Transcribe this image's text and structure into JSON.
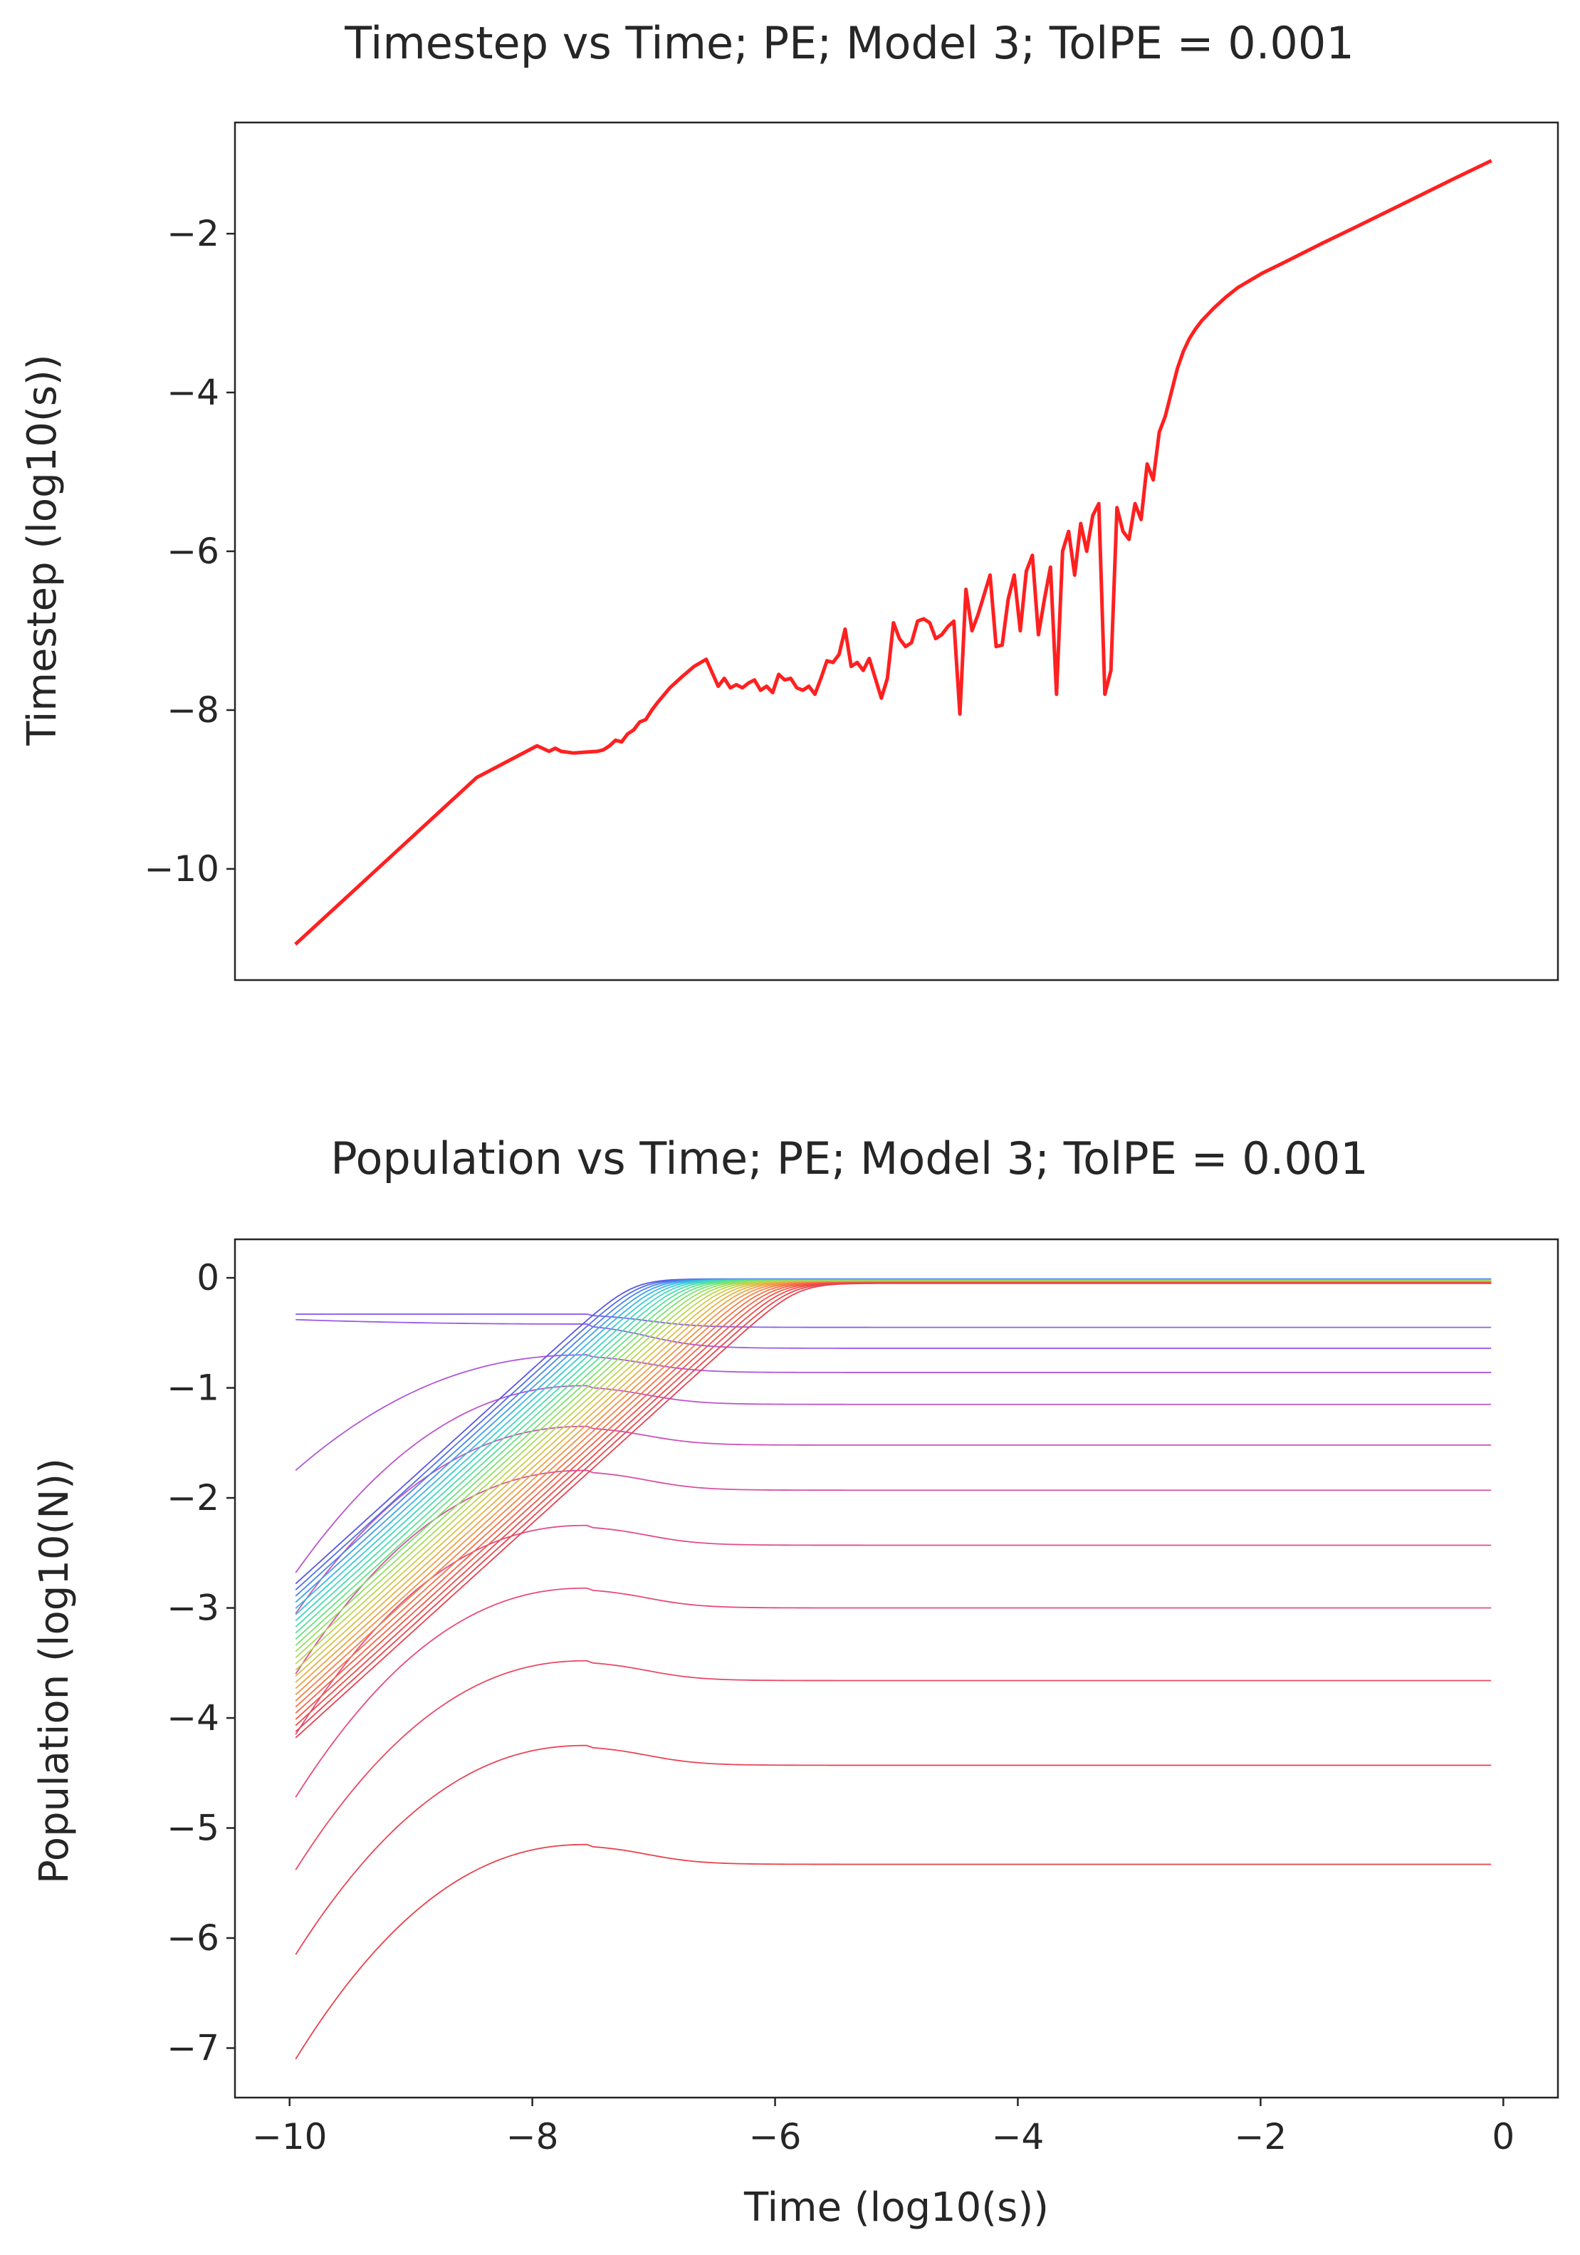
{
  "chart_data": [
    {
      "type": "line",
      "title": "Timestep vs Time; PE; Model 3; TolPE = 0.001",
      "xlabel": "",
      "ylabel": "Timestep (log10(s))",
      "xlim": [
        -10.5,
        0.45
      ],
      "ylim": [
        -11.4,
        -0.6
      ],
      "yticks": [
        -2,
        -4,
        -6,
        -8,
        -10
      ],
      "ytick_labels": [
        "−2",
        "−4",
        "−6",
        "−8",
        "−10"
      ],
      "show_xticks": false,
      "grid": false,
      "legend": "none",
      "series": [
        {
          "color": "#ff2020",
          "x": [
            -10,
            -9.5,
            -9,
            -8.5,
            -8.0,
            -7.9,
            -7.85,
            -7.8,
            -7.7,
            -7.6,
            -7.5,
            -7.45,
            -7.4,
            -7.35,
            -7.3,
            -7.25,
            -7.2,
            -7.15,
            -7.1,
            -7.05,
            -7.0,
            -6.9,
            -6.8,
            -6.7,
            -6.6,
            -6.5,
            -6.45,
            -6.4,
            -6.35,
            -6.3,
            -6.25,
            -6.2,
            -6.15,
            -6.1,
            -6.05,
            -6.0,
            -5.95,
            -5.9,
            -5.85,
            -5.8,
            -5.75,
            -5.7,
            -5.65,
            -5.6,
            -5.55,
            -5.5,
            -5.45,
            -5.4,
            -5.35,
            -5.3,
            -5.25,
            -5.2,
            -5.15,
            -5.1,
            -5.05,
            -5.0,
            -4.95,
            -4.9,
            -4.85,
            -4.8,
            -4.75,
            -4.7,
            -4.65,
            -4.6,
            -4.55,
            -4.5,
            -4.45,
            -4.4,
            -4.35,
            -4.3,
            -4.25,
            -4.2,
            -4.15,
            -4.1,
            -4.05,
            -4.0,
            -3.95,
            -3.9,
            -3.85,
            -3.8,
            -3.75,
            -3.7,
            -3.65,
            -3.6,
            -3.55,
            -3.5,
            -3.45,
            -3.4,
            -3.35,
            -3.3,
            -3.25,
            -3.2,
            -3.15,
            -3.1,
            -3.05,
            -3.0,
            -2.95,
            -2.9,
            -2.85,
            -2.8,
            -2.75,
            -2.7,
            -2.65,
            -2.6,
            -2.55,
            -2.5,
            -2.45,
            -2.4,
            -2.35,
            -2.3,
            -2.2,
            -2.0,
            -1.8,
            -1.5,
            -1.2,
            -0.8,
            -0.4,
            -0.1
          ],
          "y": [
            -10.95,
            -10.25,
            -9.55,
            -8.85,
            -8.45,
            -8.52,
            -8.48,
            -8.52,
            -8.54,
            -8.53,
            -8.52,
            -8.5,
            -8.45,
            -8.38,
            -8.4,
            -8.3,
            -8.25,
            -8.15,
            -8.12,
            -8.0,
            -7.9,
            -7.72,
            -7.58,
            -7.45,
            -7.36,
            -7.7,
            -7.6,
            -7.72,
            -7.68,
            -7.72,
            -7.66,
            -7.62,
            -7.75,
            -7.7,
            -7.78,
            -7.55,
            -7.62,
            -7.6,
            -7.72,
            -7.75,
            -7.7,
            -7.8,
            -7.6,
            -7.38,
            -7.4,
            -7.3,
            -6.98,
            -7.45,
            -7.4,
            -7.5,
            -7.35,
            -7.6,
            -7.85,
            -7.6,
            -6.9,
            -7.1,
            -7.2,
            -7.15,
            -6.88,
            -6.85,
            -6.9,
            -7.1,
            -7.05,
            -6.95,
            -6.88,
            -8.05,
            -6.48,
            -7.0,
            -6.8,
            -6.55,
            -6.3,
            -7.2,
            -7.18,
            -6.6,
            -6.3,
            -7.0,
            -6.25,
            -6.05,
            -7.05,
            -6.6,
            -6.2,
            -7.8,
            -6.0,
            -5.75,
            -6.3,
            -5.65,
            -6.0,
            -5.55,
            -5.4,
            -7.8,
            -7.5,
            -5.45,
            -5.75,
            -5.85,
            -5.4,
            -5.6,
            -4.9,
            -5.1,
            -4.5,
            -4.3,
            -4.0,
            -3.7,
            -3.48,
            -3.32,
            -3.2,
            -3.1,
            -3.02,
            -2.94,
            -2.87,
            -2.8,
            -2.68,
            -2.5,
            -2.35,
            -2.12,
            -1.9,
            -1.6,
            -1.3,
            -1.08
          ]
        }
      ]
    },
    {
      "type": "line",
      "title": "Population vs Time; PE; Model 3; TolPE = 0.001",
      "xlabel": "Time (log10(s))",
      "ylabel": "Population (log10(N))",
      "xlim": [
        -10.45,
        0.45
      ],
      "ylim": [
        -7.45,
        0.35
      ],
      "yticks": [
        0,
        -1,
        -2,
        -3,
        -4,
        -5,
        -6,
        -7
      ],
      "ytick_labels": [
        "0",
        "−1",
        "−2",
        "−3",
        "−4",
        "−5",
        "−6",
        "−7"
      ],
      "xticks": [
        -10,
        -8,
        -6,
        -4,
        -2,
        0
      ],
      "xtick_labels": [
        "−10",
        "−8",
        "−6",
        "−4",
        "−2",
        "0"
      ],
      "grid": false,
      "legend": "none",
      "colormap": "rainbow",
      "curve_family": [
        {
          "y0": -7.1,
          "peak": -5.15,
          "end": -5.33,
          "color": "#e8424a"
        },
        {
          "y0": -6.15,
          "peak": -4.25,
          "end": -4.43,
          "color": "#e84656"
        },
        {
          "y0": -5.38,
          "peak": -3.48,
          "end": -3.66,
          "color": "#e84a66"
        },
        {
          "y0": -4.72,
          "peak": -2.82,
          "end": -3.0,
          "color": "#e64c78"
        },
        {
          "y0": -4.15,
          "peak": -2.25,
          "end": -2.43,
          "color": "#e04e8e"
        },
        {
          "y0": -3.6,
          "peak": -1.75,
          "end": -1.93,
          "color": "#d850a4"
        },
        {
          "y0": -3.05,
          "peak": -1.35,
          "end": -1.52,
          "color": "#cc52ba"
        },
        {
          "y0": -2.68,
          "peak": -0.98,
          "end": -1.15,
          "color": "#be55cc"
        },
        {
          "y0": -1.75,
          "peak": -0.7,
          "end": -0.86,
          "color": "#ae58da"
        },
        {
          "y0": -0.38,
          "peak": -0.42,
          "end": -0.64,
          "color": "#9a5ce4"
        },
        {
          "y0": -0.33,
          "peak": -0.33,
          "end": -0.45,
          "color": "#8a60ea"
        }
      ],
      "rising_family": {
        "count": 26,
        "y0_top": -2.78,
        "y0_bottom": -4.18,
        "colors": [
          "#5a55e6",
          "#5070e8",
          "#4888ea",
          "#40a0ea",
          "#3cb8e2",
          "#3ccad6",
          "#40d6c4",
          "#4adcae",
          "#58e098",
          "#68e282",
          "#7ce26e",
          "#92e060",
          "#a8dc56",
          "#bcd650",
          "#cccc4c",
          "#dac04a",
          "#e4b248",
          "#eca446",
          "#f09446",
          "#f28446",
          "#f47446",
          "#f46446",
          "#f25648",
          "#ee4c4a",
          "#ea464c",
          "#e6424e"
        ]
      }
    }
  ]
}
